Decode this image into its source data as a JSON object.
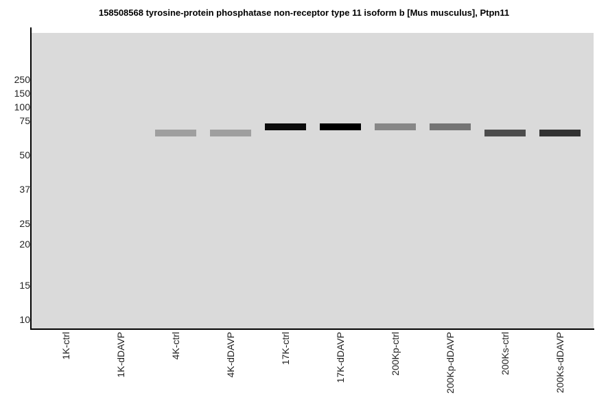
{
  "chart_data": {
    "type": "heatmap",
    "subtype": "virtual western blot",
    "title": "158508568 tyrosine-protein phosphatase non-receptor type 11 isoform b [Mus musculus], Ptpn11",
    "xlabel": "",
    "ylabel": "",
    "y_ticks": [
      "250",
      "150",
      "100",
      "75",
      "50",
      "37",
      "25",
      "20",
      "15",
      "10"
    ],
    "y_tick_values_kda": [
      250,
      150,
      100,
      75,
      50,
      37,
      25,
      20,
      15,
      10
    ],
    "lanes": [
      "1K-ctrl",
      "1K-dDAVP",
      "4K-ctrl",
      "4K-dDAVP",
      "17K-ctrl",
      "17K-dDAVP",
      "200Kp-ctrl",
      "200Kp-dDAVP",
      "200Ks-ctrl",
      "200Ks-dDAVP"
    ],
    "bands": [
      {
        "lane": "1K-ctrl",
        "mw_kda": null,
        "intensity": 0
      },
      {
        "lane": "1K-dDAVP",
        "mw_kda": null,
        "intensity": 0
      },
      {
        "lane": "4K-ctrl",
        "mw_kda": 65,
        "intensity": 0.27
      },
      {
        "lane": "4K-dDAVP",
        "mw_kda": 65,
        "intensity": 0.27
      },
      {
        "lane": "17K-ctrl",
        "mw_kda": 70,
        "intensity": 0.95
      },
      {
        "lane": "17K-dDAVP",
        "mw_kda": 70,
        "intensity": 1.0
      },
      {
        "lane": "200Kp-ctrl",
        "mw_kda": 70,
        "intensity": 0.38
      },
      {
        "lane": "200Kp-dDAVP",
        "mw_kda": 70,
        "intensity": 0.47
      },
      {
        "lane": "200Ks-ctrl",
        "mw_kda": 65,
        "intensity": 0.65
      },
      {
        "lane": "200Ks-dDAVP",
        "mw_kda": 65,
        "intensity": 0.77
      }
    ],
    "colors": {
      "background": "#dadada",
      "band_max": "#000000",
      "axis": "#000000"
    }
  }
}
